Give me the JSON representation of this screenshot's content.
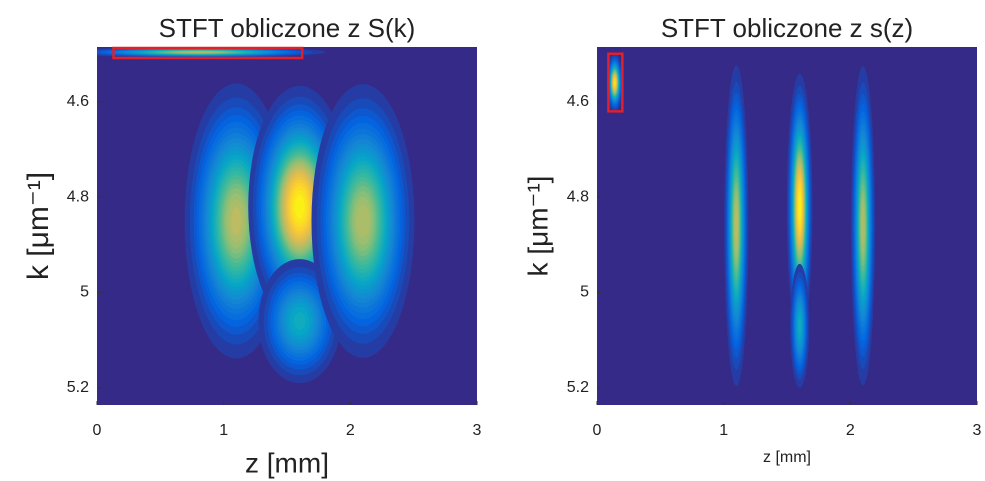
{
  "chart_data": [
    {
      "type": "heatmap",
      "title": "STFT obliczone z S(k)",
      "xlabel": "z [mm]",
      "ylabel": "k [μm⁻¹]",
      "xlim": [
        0,
        3
      ],
      "ylim": [
        4.485,
        5.236
      ],
      "xticks": [
        0,
        1,
        2,
        3
      ],
      "yticks": [
        4.6,
        4.8,
        5,
        5.2
      ],
      "y_reversed": true,
      "background": "#352a87",
      "colormap": [
        "#352a87",
        "#0363e1",
        "#1485d4",
        "#06a7c6",
        "#38b99e",
        "#92bf73",
        "#d9ba56",
        "#fcce2e",
        "#f9fb0e"
      ],
      "spots": [
        {
          "z": 0.8,
          "k": 4.496,
          "sz": 0.42,
          "sk": 0.005,
          "intensity": 0.7
        },
        {
          "z": 1.1,
          "k": 4.85,
          "sz": 0.17,
          "sk": 0.12,
          "intensity": 0.72
        },
        {
          "z": 1.6,
          "k": 4.82,
          "sz": 0.16,
          "sk": 0.1,
          "intensity": 1.0
        },
        {
          "z": 1.6,
          "k": 5.06,
          "sz": 0.15,
          "sk": 0.06,
          "intensity": 0.42
        },
        {
          "z": 2.1,
          "k": 4.85,
          "sz": 0.17,
          "sk": 0.12,
          "intensity": 0.7
        }
      ],
      "highlights": [
        {
          "zlim": [
            0.13,
            1.62
          ],
          "klim": [
            4.485,
            4.508
          ],
          "color": "#e0202a"
        }
      ]
    },
    {
      "type": "heatmap",
      "title": "STFT obliczone z s(z)",
      "xlabel": "z [mm]",
      "ylabel": "k [μm⁻¹]",
      "xlim": [
        0,
        3
      ],
      "ylim": [
        4.485,
        5.236
      ],
      "xticks": [
        0,
        1,
        2,
        3
      ],
      "yticks": [
        4.6,
        4.8,
        5,
        5.2
      ],
      "y_reversed": true,
      "background": "#352a87",
      "colormap": [
        "#352a87",
        "#0363e1",
        "#1485d4",
        "#06a7c6",
        "#38b99e",
        "#92bf73",
        "#d9ba56",
        "#fcce2e",
        "#f9fb0e"
      ],
      "spots": [
        {
          "z": 0.14,
          "k": 4.56,
          "sz": 0.025,
          "sk": 0.025,
          "intensity": 0.95
        },
        {
          "z": 1.1,
          "k": 4.86,
          "sz": 0.04,
          "sk": 0.14,
          "intensity": 0.72
        },
        {
          "z": 1.6,
          "k": 4.82,
          "sz": 0.04,
          "sk": 0.11,
          "intensity": 1.0
        },
        {
          "z": 1.6,
          "k": 5.07,
          "sz": 0.035,
          "sk": 0.06,
          "intensity": 0.42
        },
        {
          "z": 2.1,
          "k": 4.86,
          "sz": 0.04,
          "sk": 0.14,
          "intensity": 0.7
        }
      ],
      "highlights": [
        {
          "zlim": [
            0.09,
            0.2
          ],
          "klim": [
            4.497,
            4.62
          ],
          "color": "#e0202a"
        }
      ]
    }
  ]
}
